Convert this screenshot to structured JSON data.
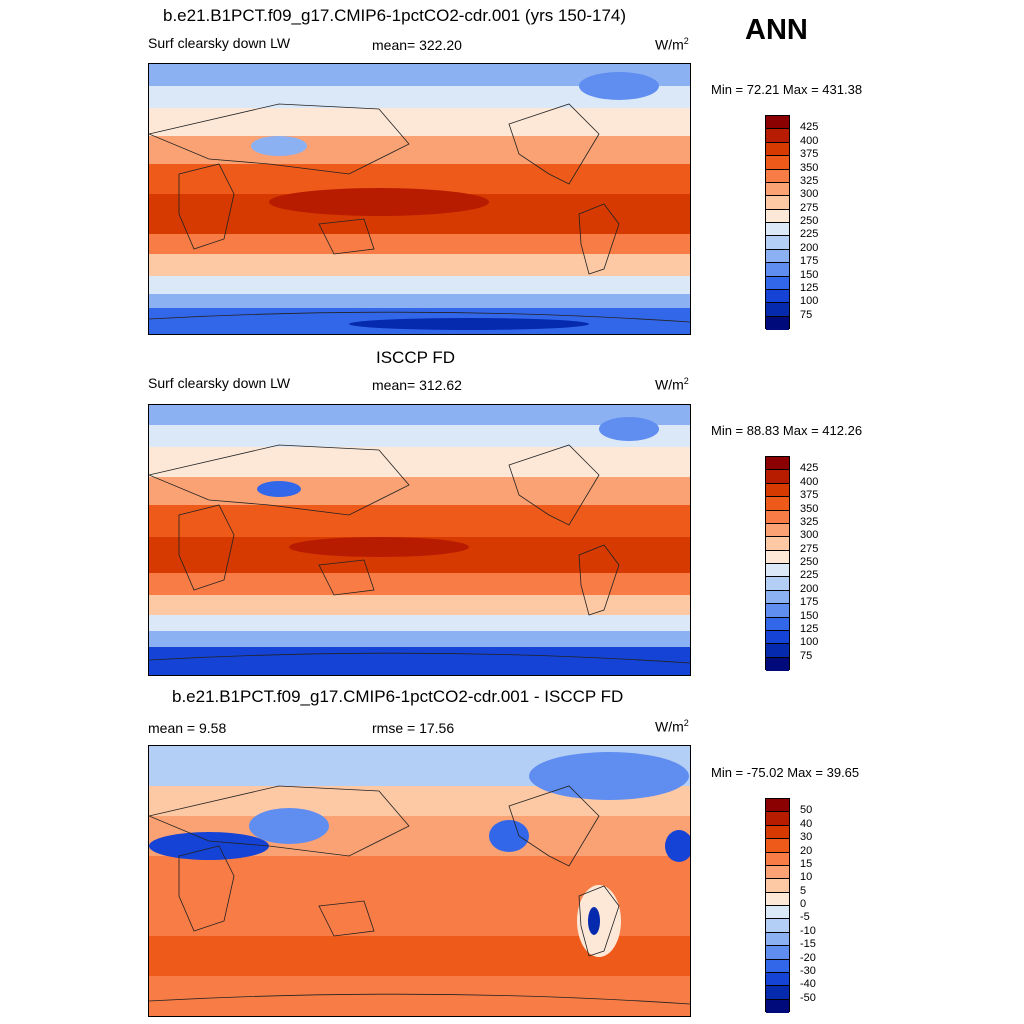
{
  "season": "ANN",
  "panels": [
    {
      "title": "b.e21.B1PCT.f09_g17.CMIP6-1pctCO2-cdr.001 (yrs 150-174)",
      "left_label": "Surf clearsky down LW",
      "center_label": "mean= 322.20",
      "units": "W/m",
      "units_exp": "2",
      "minmax": "Min =  72.21 Max = 431.38",
      "type": "field",
      "cb_labels": [
        "425",
        "400",
        "375",
        "350",
        "325",
        "300",
        "275",
        "250",
        "225",
        "200",
        "175",
        "150",
        "125",
        "100",
        "75"
      ]
    },
    {
      "title": "ISCCP FD",
      "left_label": "Surf clearsky down LW",
      "center_label": "mean= 312.62",
      "units": "W/m",
      "units_exp": "2",
      "minmax": "Min =  88.83 Max = 412.26",
      "type": "field",
      "cb_labels": [
        "425",
        "400",
        "375",
        "350",
        "325",
        "300",
        "275",
        "250",
        "225",
        "200",
        "175",
        "150",
        "125",
        "100",
        "75"
      ]
    },
    {
      "title": "b.e21.B1PCT.f09_g17.CMIP6-1pctCO2-cdr.001 - ISCCP FD",
      "left_label": "mean =   9.58",
      "center_label": "rmse =  17.56",
      "units": "W/m",
      "units_exp": "2",
      "minmax": "Min = -75.02 Max =  39.65",
      "type": "diff",
      "cb_labels": [
        "50",
        "40",
        "30",
        "20",
        "15",
        "10",
        "5",
        "0",
        "-5",
        "-10",
        "-15",
        "-20",
        "-30",
        "-40",
        "-50"
      ]
    }
  ],
  "colors": {
    "field_scale": [
      "#8b0000",
      "#b81c00",
      "#d63a00",
      "#ee5a1a",
      "#f77c45",
      "#fba274",
      "#fdc8a4",
      "#fde8d8",
      "#dbe8f8",
      "#b4cff5",
      "#8cb1f3",
      "#5f8df0",
      "#3367ea",
      "#1443d6",
      "#052aae",
      "#000a7a"
    ],
    "diff_scale": [
      "#8b0000",
      "#b81c00",
      "#d63a00",
      "#ee5a1a",
      "#f77c45",
      "#fba274",
      "#fdc8a4",
      "#fde8d8",
      "#dbe8f8",
      "#b4cff5",
      "#8cb1f3",
      "#5f8df0",
      "#3367ea",
      "#1443d6",
      "#052aae",
      "#000a7a"
    ]
  }
}
